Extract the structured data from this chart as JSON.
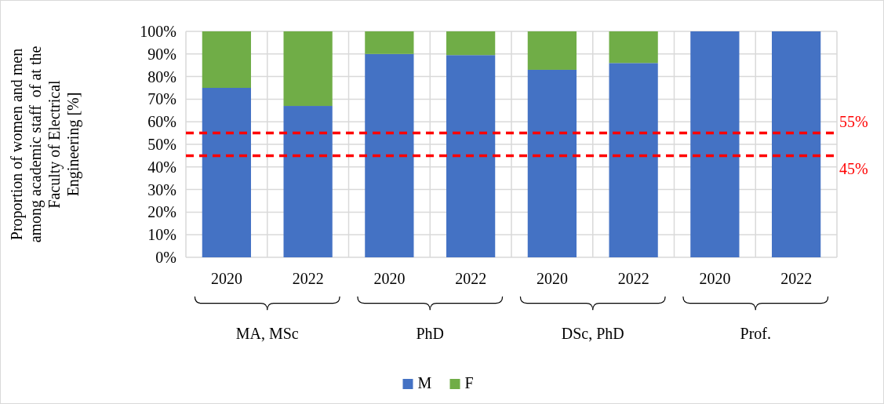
{
  "chart_data": {
    "type": "bar",
    "stacked": true,
    "ylabel": "Proportion of women and men among academic staff  of at the Faculty of Electrical Engineering [%]",
    "categories": [
      "2020",
      "2022",
      "2020",
      "2022",
      "2020",
      "2022",
      "2020",
      "2022"
    ],
    "series": [
      {
        "name": "M",
        "color": "#4472c4",
        "values": [
          75,
          67,
          90,
          89.5,
          83,
          86,
          100,
          100
        ]
      },
      {
        "name": "F",
        "color": "#70ad47",
        "values": [
          25,
          33,
          10,
          10.5,
          17,
          14,
          0,
          0
        ]
      }
    ],
    "ylim": [
      0,
      100
    ],
    "yticks": [
      {
        "value": 0,
        "label": "0%"
      },
      {
        "value": 10,
        "label": "10%"
      },
      {
        "value": 20,
        "label": "20%"
      },
      {
        "value": 30,
        "label": "30%"
      },
      {
        "value": 40,
        "label": "40%"
      },
      {
        "value": 50,
        "label": "50%"
      },
      {
        "value": 60,
        "label": "60%"
      },
      {
        "value": 70,
        "label": "70%"
      },
      {
        "value": 80,
        "label": "80%"
      },
      {
        "value": 90,
        "label": "90%"
      },
      {
        "value": 100,
        "label": "100%"
      }
    ],
    "annotations": [
      "MA, MSc",
      "PhD",
      "DSc, PhD",
      "Prof."
    ],
    "ref_lines": [
      {
        "axis": "y",
        "value": 55,
        "label": "55%",
        "color": "#ff0000",
        "line_style": "dashed"
      },
      {
        "axis": "y",
        "value": 45,
        "label": "45%",
        "color": "#ff0000",
        "line_style": "dashed"
      }
    ],
    "grid": true,
    "legend": "bottom"
  }
}
